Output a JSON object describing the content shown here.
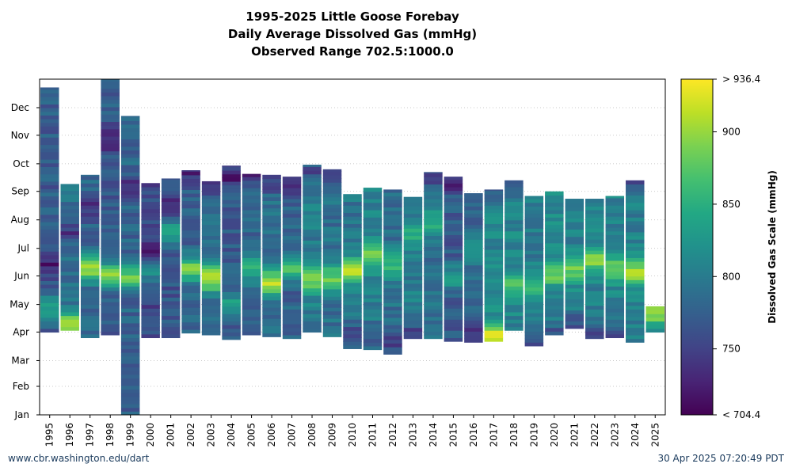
{
  "chart_data": {
    "type": "heatmap",
    "title_lines": [
      "1995-2025 Little Goose Forebay",
      "Daily Average Dissolved Gas (mmHg)",
      "Observed Range 702.5:1000.0"
    ],
    "x_categories": [
      "1995",
      "1996",
      "1997",
      "1998",
      "1999",
      "2000",
      "2001",
      "2002",
      "2003",
      "2004",
      "2005",
      "2006",
      "2007",
      "2008",
      "2009",
      "2010",
      "2011",
      "2012",
      "2013",
      "2014",
      "2015",
      "2016",
      "2017",
      "2018",
      "2019",
      "2020",
      "2021",
      "2022",
      "2023",
      "2024",
      "2025"
    ],
    "y_month_labels": [
      "Jan",
      "Feb",
      "Mar",
      "Apr",
      "May",
      "Jun",
      "Jul",
      "Aug",
      "Sep",
      "Oct",
      "Nov",
      "Dec"
    ],
    "y_month_start_day": [
      1,
      32,
      60,
      91,
      121,
      152,
      182,
      213,
      244,
      274,
      305,
      335
    ],
    "y_range_days": [
      1,
      366
    ],
    "colorbar": {
      "label": "Dissolved Gas Scale (mmHg)",
      "min": 704.4,
      "max": 936.4,
      "ticks": [
        750,
        800,
        850,
        900
      ],
      "min_label": "< 704.4",
      "max_label": "> 936.4",
      "colormap": "viridis"
    },
    "grid": true,
    "years": [
      {
        "year": "1995",
        "start_day": 91,
        "end_day": 357,
        "mean": 770,
        "low_day": 165,
        "high_day": 118,
        "peak": 830
      },
      {
        "year": "1996",
        "start_day": 93,
        "end_day": 252,
        "mean": 790,
        "low_day": 200,
        "high_day": 98,
        "peak": 915
      },
      {
        "year": "1997",
        "start_day": 85,
        "end_day": 262,
        "mean": 780,
        "low_day": 225,
        "high_day": 160,
        "peak": 895
      },
      {
        "year": "1998",
        "start_day": 88,
        "end_day": 367,
        "mean": 770,
        "low_day": 300,
        "high_day": 152,
        "peak": 900
      },
      {
        "year": "1999",
        "start_day": 1,
        "end_day": 326,
        "mean": 778,
        "low_day": 250,
        "high_day": 152,
        "peak": 880
      },
      {
        "year": "2000",
        "start_day": 85,
        "end_day": 253,
        "mean": 755,
        "low_day": 180,
        "high_day": 160,
        "peak": 830
      },
      {
        "year": "2001",
        "start_day": 85,
        "end_day": 258,
        "mean": 765,
        "low_day": 230,
        "high_day": 200,
        "peak": 850
      },
      {
        "year": "2002",
        "start_day": 90,
        "end_day": 267,
        "mean": 775,
        "low_day": 265,
        "high_day": 160,
        "peak": 890
      },
      {
        "year": "2003",
        "start_day": 88,
        "end_day": 255,
        "mean": 790,
        "low_day": 250,
        "high_day": 150,
        "peak": 920
      },
      {
        "year": "2004",
        "start_day": 83,
        "end_day": 272,
        "mean": 770,
        "low_day": 260,
        "high_day": 120,
        "peak": 840
      },
      {
        "year": "2005",
        "start_day": 88,
        "end_day": 263,
        "mean": 780,
        "low_day": 262,
        "high_day": 160,
        "peak": 850
      },
      {
        "year": "2006",
        "start_day": 86,
        "end_day": 262,
        "mean": 790,
        "low_day": 255,
        "high_day": 145,
        "peak": 915
      },
      {
        "year": "2007",
        "start_day": 84,
        "end_day": 260,
        "mean": 775,
        "low_day": 255,
        "high_day": 160,
        "peak": 860
      },
      {
        "year": "2008",
        "start_day": 91,
        "end_day": 273,
        "mean": 800,
        "low_day": 265,
        "high_day": 148,
        "peak": 890
      },
      {
        "year": "2009",
        "start_day": 86,
        "end_day": 268,
        "mean": 790,
        "low_day": 260,
        "high_day": 150,
        "peak": 880
      },
      {
        "year": "2010",
        "start_day": 73,
        "end_day": 241,
        "mean": 795,
        "low_day": 90,
        "high_day": 158,
        "peak": 915
      },
      {
        "year": "2011",
        "start_day": 72,
        "end_day": 248,
        "mean": 805,
        "low_day": 90,
        "high_day": 175,
        "peak": 895
      },
      {
        "year": "2012",
        "start_day": 67,
        "end_day": 246,
        "mean": 790,
        "low_day": 80,
        "high_day": 165,
        "peak": 860
      },
      {
        "year": "2013",
        "start_day": 84,
        "end_day": 238,
        "mean": 800,
        "low_day": 90,
        "high_day": 200,
        "peak": 850
      },
      {
        "year": "2014",
        "start_day": 84,
        "end_day": 265,
        "mean": 790,
        "low_day": 260,
        "high_day": 210,
        "peak": 850
      },
      {
        "year": "2015",
        "start_day": 81,
        "end_day": 260,
        "mean": 770,
        "low_day": 255,
        "high_day": 150,
        "peak": 830
      },
      {
        "year": "2016",
        "start_day": 80,
        "end_day": 242,
        "mean": 780,
        "low_day": 90,
        "high_day": 180,
        "peak": 840
      },
      {
        "year": "2017",
        "start_day": 81,
        "end_day": 246,
        "mean": 810,
        "low_day": 240,
        "high_day": 88,
        "peak": 925
      },
      {
        "year": "2018",
        "start_day": 93,
        "end_day": 256,
        "mean": 810,
        "low_day": 250,
        "high_day": 140,
        "peak": 870
      },
      {
        "year": "2019",
        "start_day": 76,
        "end_day": 239,
        "mean": 800,
        "low_day": 80,
        "high_day": 140,
        "peak": 860
      },
      {
        "year": "2020",
        "start_day": 88,
        "end_day": 244,
        "mean": 810,
        "low_day": 90,
        "high_day": 155,
        "peak": 880
      },
      {
        "year": "2021",
        "start_day": 95,
        "end_day": 236,
        "mean": 805,
        "low_day": 100,
        "high_day": 160,
        "peak": 880
      },
      {
        "year": "2022",
        "start_day": 84,
        "end_day": 236,
        "mean": 805,
        "low_day": 90,
        "high_day": 170,
        "peak": 890
      },
      {
        "year": "2023",
        "start_day": 85,
        "end_day": 239,
        "mean": 805,
        "low_day": 90,
        "high_day": 160,
        "peak": 895
      },
      {
        "year": "2024",
        "start_day": 80,
        "end_day": 256,
        "mean": 805,
        "low_day": 250,
        "high_day": 155,
        "peak": 905
      },
      {
        "year": "2025",
        "start_day": 91,
        "end_day": 119,
        "mean": 850,
        "low_day": 91,
        "high_day": 110,
        "peak": 890
      }
    ]
  },
  "footer": {
    "source": "www.cbr.washington.edu/dart",
    "timestamp": "30 Apr 2025 07:20:49 PDT"
  }
}
